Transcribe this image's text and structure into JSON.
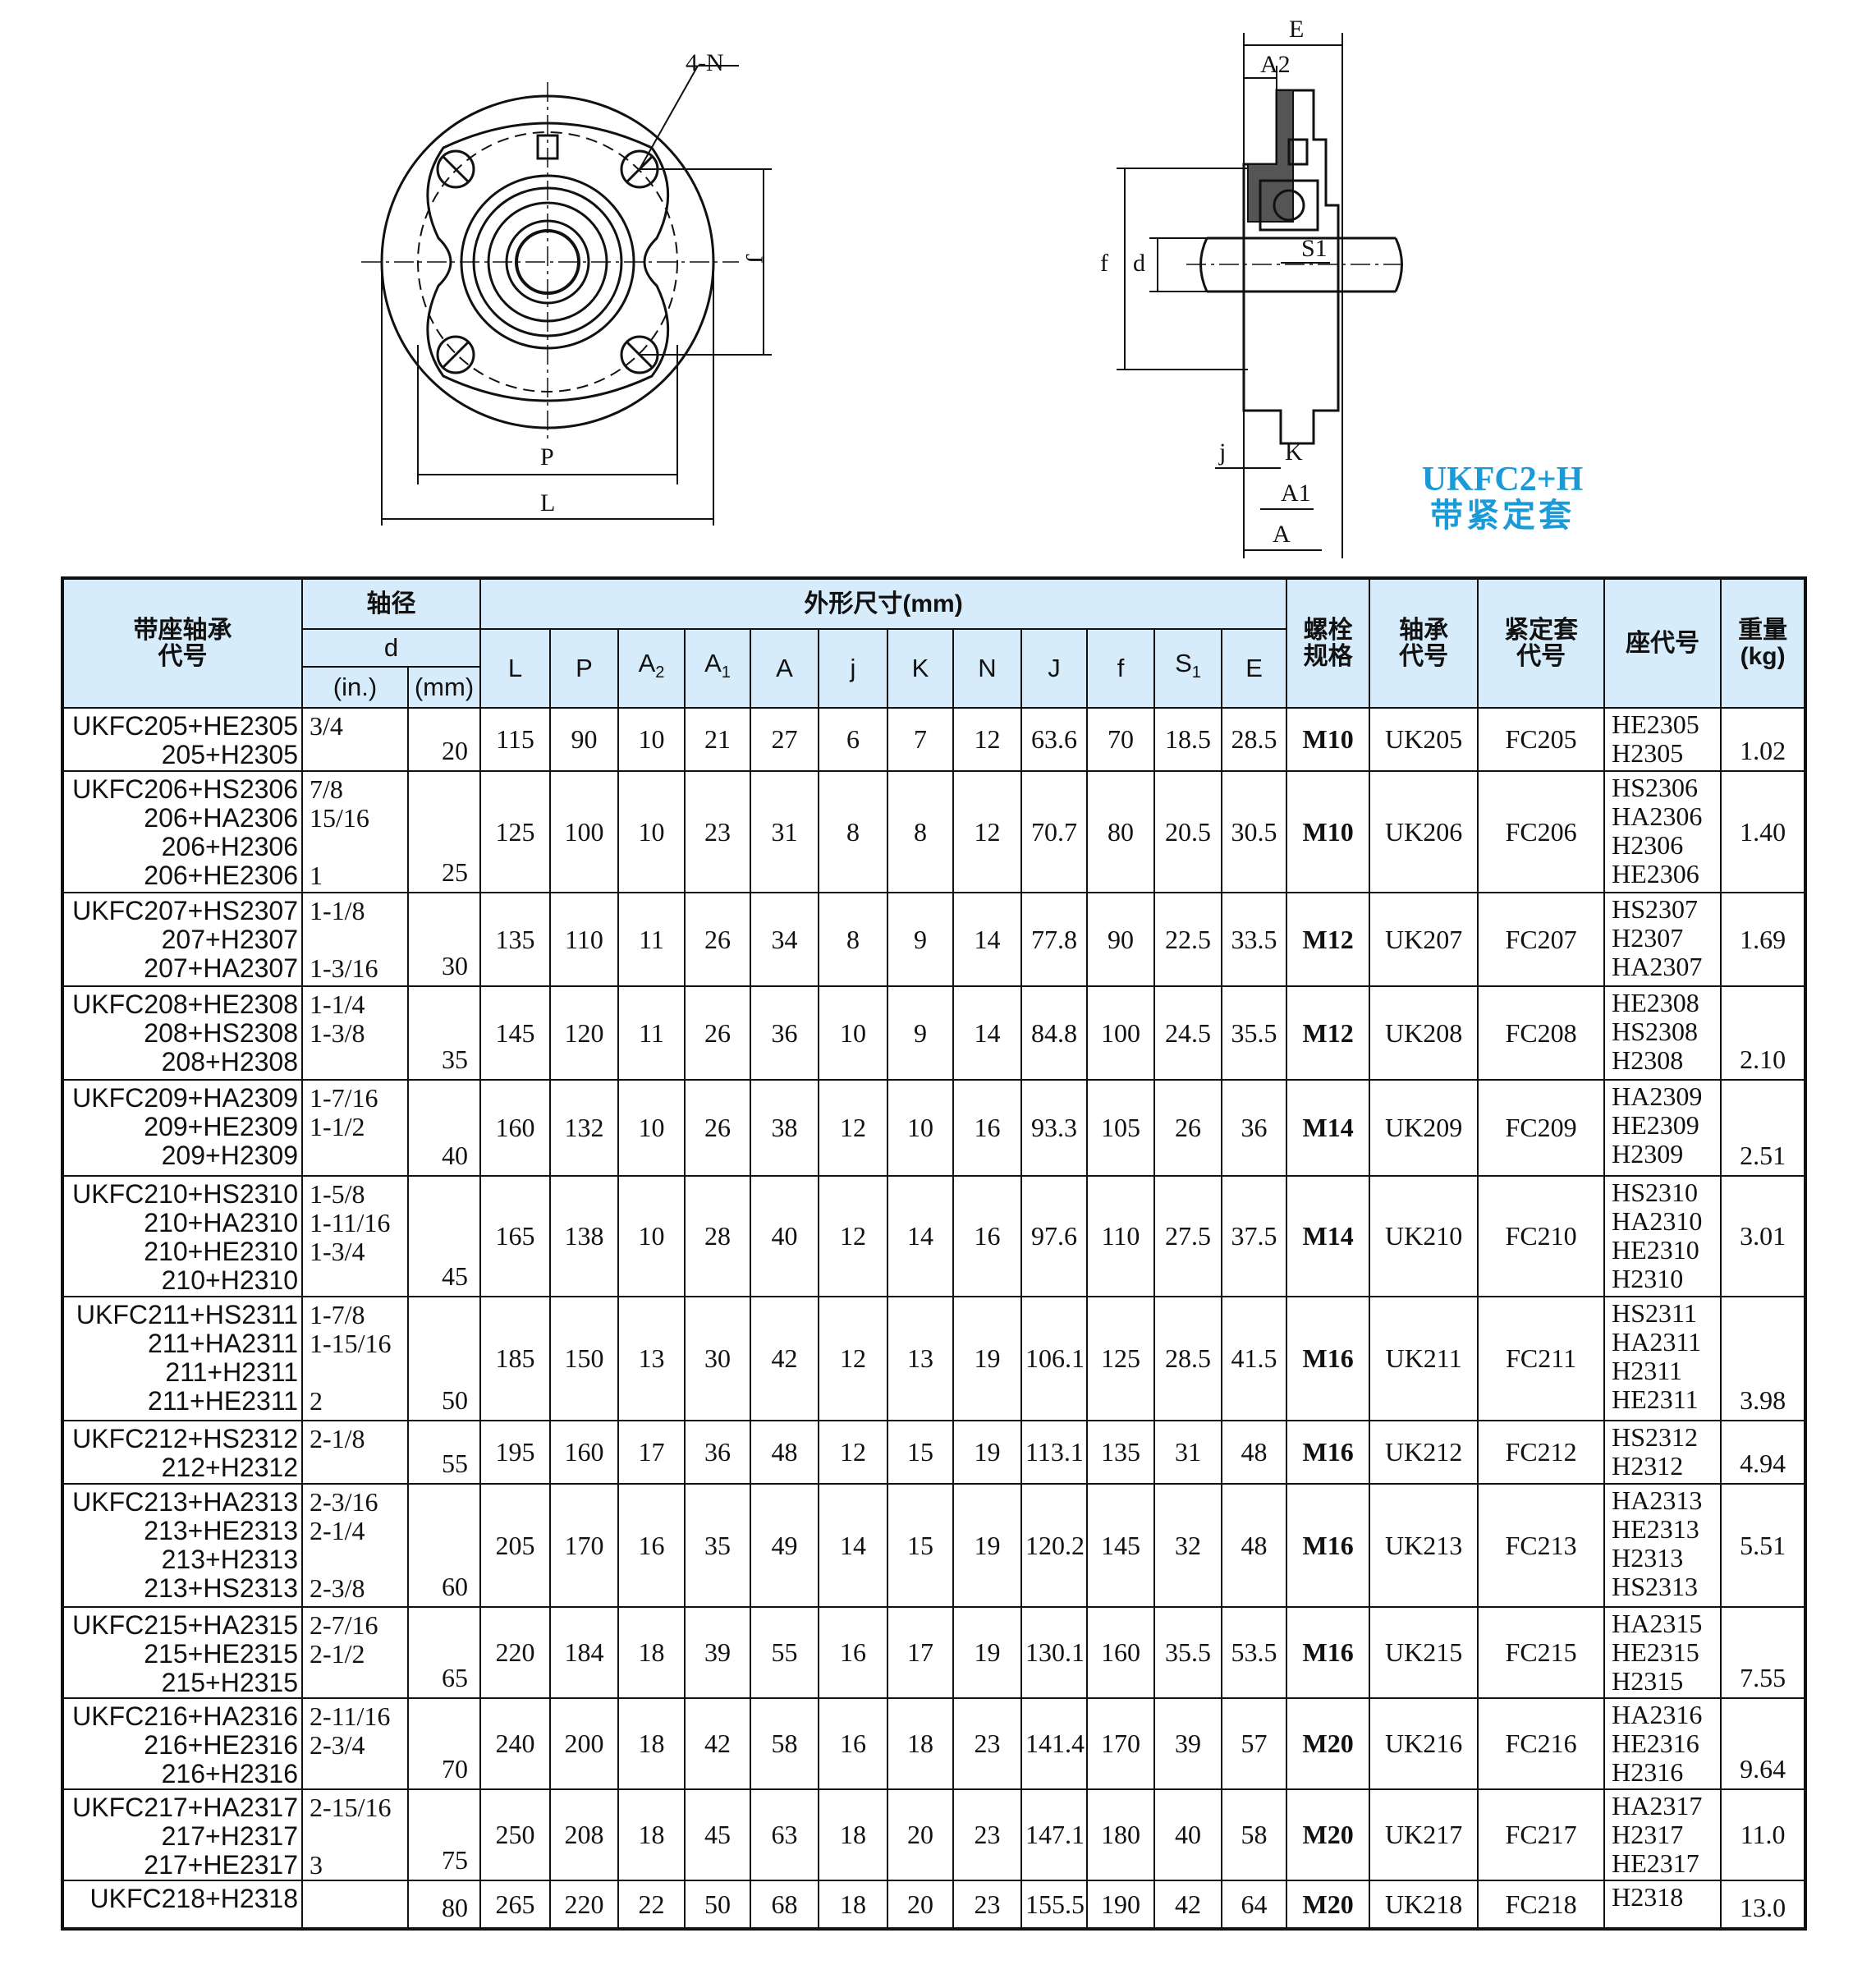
{
  "drawing": {
    "labels": {
      "n": "4-N",
      "J": "J",
      "P": "P",
      "L": "L",
      "E": "E",
      "A2": "A2",
      "f": "f",
      "d": "d",
      "S1": "S1",
      "j": "j",
      "K": "K",
      "A1": "A1",
      "A": "A"
    },
    "title": "UKFC2+H",
    "subtitle": "带紧定套",
    "title_color": "#1a9ad6"
  },
  "table": {
    "header_color": "#d7ecfa",
    "headers": {
      "model": "带座轴承\n代号",
      "shaft": "轴径",
      "d": "d",
      "inch": "(in.)",
      "mm": "(mm)",
      "dims": "外形尺寸(mm)",
      "dim_cols": [
        "L",
        "P",
        "A2",
        "A1",
        "A",
        "j",
        "K",
        "N",
        "J",
        "f",
        "S1",
        "E"
      ],
      "bolt": "螺栓\n规格",
      "bearing": "轴承\n代号",
      "sleeve": "紧定套\n代号",
      "seat": "座代号",
      "weight": "重量\n(kg)"
    },
    "rows": [
      {
        "model": "UKFC205+HE2305\n205+H2305",
        "inch": "3/4\n",
        "mm": "20",
        "dims": [
          "115",
          "90",
          "10",
          "21",
          "27",
          "6",
          "7",
          "12",
          "63.6",
          "70",
          "18.5",
          "28.5"
        ],
        "bolt": "M10",
        "bearing": "UK205",
        "sleeve": "FC205",
        "seat": "HE2305\nH2305",
        "weight": "1.02"
      },
      {
        "model": "UKFC206+HS2306\n206+HA2306\n206+H2306\n206+HE2306",
        "inch": "7/8\n15/16\n\n1",
        "mm": "25",
        "dims": [
          "125",
          "100",
          "10",
          "23",
          "31",
          "8",
          "8",
          "12",
          "70.7",
          "80",
          "20.5",
          "30.5"
        ],
        "bolt": "M10",
        "bearing": "UK206",
        "sleeve": "FC206",
        "seat": "HS2306\nHA2306\nH2306\nHE2306",
        "weight": "1.40"
      },
      {
        "model": "UKFC207+HS2307\n207+H2307\n207+HA2307",
        "inch": "1-1/8\n\n1-3/16",
        "mm": "30",
        "dims": [
          "135",
          "110",
          "11",
          "26",
          "34",
          "8",
          "9",
          "14",
          "77.8",
          "90",
          "22.5",
          "33.5"
        ],
        "bolt": "M12",
        "bearing": "UK207",
        "sleeve": "FC207",
        "seat": "HS2307\nH2307\nHA2307",
        "weight": "1.69"
      },
      {
        "model": "UKFC208+HE2308\n208+HS2308\n208+H2308",
        "inch": "1-1/4\n1-3/8",
        "mm": "35",
        "dims": [
          "145",
          "120",
          "11",
          "26",
          "36",
          "10",
          "9",
          "14",
          "84.8",
          "100",
          "24.5",
          "35.5"
        ],
        "bolt": "M12",
        "bearing": "UK208",
        "sleeve": "FC208",
        "seat": "HE2308\nHS2308\nH2308",
        "weight": "2.10"
      },
      {
        "model": "UKFC209+HA2309\n209+HE2309\n209+H2309",
        "inch": "1-7/16\n1-1/2",
        "mm": "40",
        "dims": [
          "160",
          "132",
          "10",
          "26",
          "38",
          "12",
          "10",
          "16",
          "93.3",
          "105",
          "26",
          "36"
        ],
        "bolt": "M14",
        "bearing": "UK209",
        "sleeve": "FC209",
        "seat": "HA2309\nHE2309\nH2309",
        "weight": "2.51"
      },
      {
        "model": "UKFC210+HS2310\n210+HA2310\n210+HE2310\n210+H2310",
        "inch": "1-5/8\n1-11/16\n1-3/4",
        "mm": "45",
        "dims": [
          "165",
          "138",
          "10",
          "28",
          "40",
          "12",
          "14",
          "16",
          "97.6",
          "110",
          "27.5",
          "37.5"
        ],
        "bolt": "M14",
        "bearing": "UK210",
        "sleeve": "FC210",
        "seat": "HS2310\nHA2310\nHE2310\nH2310",
        "weight": "3.01"
      },
      {
        "model": "UKFC211+HS2311\n211+HA2311\n211+H2311\n211+HE2311",
        "inch": "1-7/8\n1-15/16\n\n2",
        "mm": "50",
        "dims": [
          "185",
          "150",
          "13",
          "30",
          "42",
          "12",
          "13",
          "19",
          "106.1",
          "125",
          "28.5",
          "41.5"
        ],
        "bolt": "M16",
        "bearing": "UK211",
        "sleeve": "FC211",
        "seat": "HS2311\nHA2311\nH2311\nHE2311",
        "weight": "3.98"
      },
      {
        "model": "UKFC212+HS2312\n212+H2312",
        "inch": "2-1/8",
        "mm": "55",
        "dims": [
          "195",
          "160",
          "17",
          "36",
          "48",
          "12",
          "15",
          "19",
          "113.1",
          "135",
          "31",
          "48"
        ],
        "bolt": "M16",
        "bearing": "UK212",
        "sleeve": "FC212",
        "seat": "HS2312\nH2312",
        "weight": "4.94"
      },
      {
        "model": "UKFC213+HA2313\n213+HE2313\n213+H2313\n213+HS2313",
        "inch": "2-3/16\n2-1/4\n\n2-3/8",
        "mm": "60",
        "dims": [
          "205",
          "170",
          "16",
          "35",
          "49",
          "14",
          "15",
          "19",
          "120.2",
          "145",
          "32",
          "48"
        ],
        "bolt": "M16",
        "bearing": "UK213",
        "sleeve": "FC213",
        "seat": "HA2313\nHE2313\nH2313\nHS2313",
        "weight": "5.51"
      },
      {
        "model": "UKFC215+HA2315\n215+HE2315\n215+H2315",
        "inch": "2-7/16\n2-1/2",
        "mm": "65",
        "dims": [
          "220",
          "184",
          "18",
          "39",
          "55",
          "16",
          "17",
          "19",
          "130.1",
          "160",
          "35.5",
          "53.5"
        ],
        "bolt": "M16",
        "bearing": "UK215",
        "sleeve": "FC215",
        "seat": "HA2315\nHE2315\nH2315",
        "weight": "7.55"
      },
      {
        "model": "UKFC216+HA2316\n216+HE2316\n216+H2316",
        "inch": "2-11/16\n2-3/4",
        "mm": "70",
        "dims": [
          "240",
          "200",
          "18",
          "42",
          "58",
          "16",
          "18",
          "23",
          "141.4",
          "170",
          "39",
          "57"
        ],
        "bolt": "M20",
        "bearing": "UK216",
        "sleeve": "FC216",
        "seat": "HA2316\nHE2316\nH2316",
        "weight": "9.64"
      },
      {
        "model": "UKFC217+HA2317\n217+H2317\n217+HE2317",
        "inch": "2-15/16\n\n3",
        "mm": "75",
        "dims": [
          "250",
          "208",
          "18",
          "45",
          "63",
          "18",
          "20",
          "23",
          "147.1",
          "180",
          "40",
          "58"
        ],
        "bolt": "M20",
        "bearing": "UK217",
        "sleeve": "FC217",
        "seat": "HA2317\nH2317\nHE2317",
        "weight": "11.0"
      },
      {
        "model": "UKFC218+H2318",
        "inch": "",
        "mm": "80",
        "dims": [
          "265",
          "220",
          "22",
          "50",
          "68",
          "18",
          "20",
          "23",
          "155.5",
          "190",
          "42",
          "64"
        ],
        "bolt": "M20",
        "bearing": "UK218",
        "sleeve": "FC218",
        "seat": "H2318",
        "weight": "13.0"
      }
    ]
  }
}
